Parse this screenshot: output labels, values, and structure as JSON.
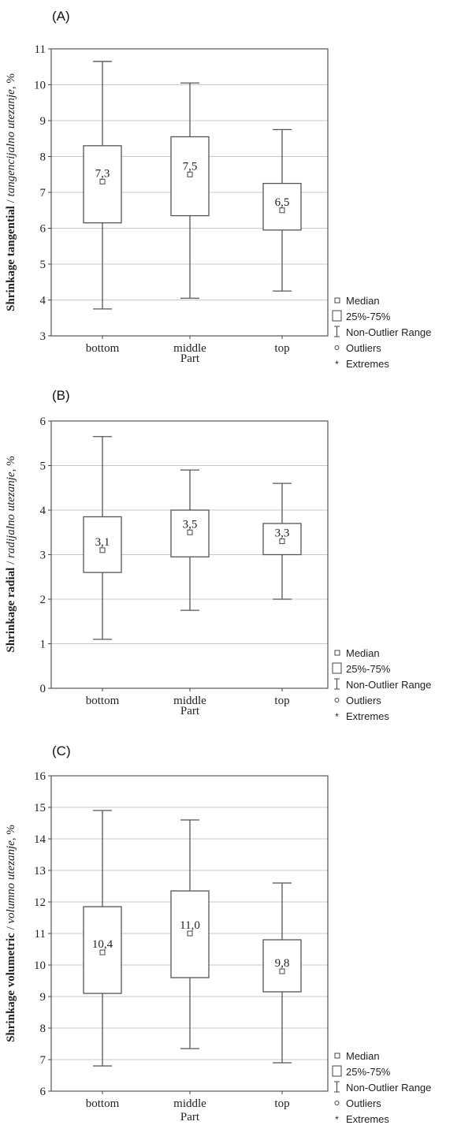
{
  "legend": {
    "median": "Median",
    "box": "25%-75%",
    "range": "Non-Outlier Range",
    "outliers": "Outliers",
    "extremes": "Extremes"
  },
  "chart_data": [
    {
      "type": "box",
      "panel_label": "(A)",
      "ylabel_bold": "Shrinkage tangential",
      "ylabel_sep": " / ",
      "ylabel_italic": "tangencijalno utezanje",
      "ylabel_unit": ", %",
      "xlabel": "Part",
      "ylim": [
        3,
        11
      ],
      "yticks": [
        "3",
        "4",
        "5",
        "6",
        "7",
        "8",
        "9",
        "10",
        "11"
      ],
      "grid": true,
      "categories": [
        "bottom",
        "middle",
        "top"
      ],
      "boxes": [
        {
          "min": 3.75,
          "q1": 6.15,
          "median": 7.3,
          "q3": 8.3,
          "max": 10.65,
          "label": "7,3"
        },
        {
          "min": 4.05,
          "q1": 6.35,
          "median": 7.5,
          "q3": 8.55,
          "max": 10.05,
          "label": "7,5"
        },
        {
          "min": 4.25,
          "q1": 5.95,
          "median": 6.5,
          "q3": 7.25,
          "max": 8.75,
          "label": "6,5"
        }
      ]
    },
    {
      "type": "box",
      "panel_label": "(B)",
      "ylabel_bold": "Shrinkage radial",
      "ylabel_sep": " / ",
      "ylabel_italic": "radijalno utezanje",
      "ylabel_unit": ", %",
      "xlabel": "Part",
      "ylim": [
        0,
        6
      ],
      "yticks": [
        "0",
        "1",
        "2",
        "3",
        "4",
        "5",
        "6"
      ],
      "grid": true,
      "categories": [
        "bottom",
        "middle",
        "top"
      ],
      "boxes": [
        {
          "min": 1.1,
          "q1": 2.6,
          "median": 3.1,
          "q3": 3.85,
          "max": 5.65,
          "label": "3,1"
        },
        {
          "min": 1.75,
          "q1": 2.95,
          "median": 3.5,
          "q3": 4.0,
          "max": 4.9,
          "label": "3,5"
        },
        {
          "min": 2.0,
          "q1": 3.0,
          "median": 3.3,
          "q3": 3.7,
          "max": 4.6,
          "label": "3,3"
        }
      ]
    },
    {
      "type": "box",
      "panel_label": "(C)",
      "ylabel_bold": "Shrinkage volumetric",
      "ylabel_sep": " / ",
      "ylabel_italic": "volumno utezanje",
      "ylabel_unit": ", %",
      "xlabel": "Part",
      "ylim": [
        6,
        16
      ],
      "yticks": [
        "6",
        "7",
        "8",
        "9",
        "10",
        "11",
        "12",
        "13",
        "14",
        "15",
        "16"
      ],
      "grid": true,
      "categories": [
        "bottom",
        "middle",
        "top"
      ],
      "boxes": [
        {
          "min": 6.8,
          "q1": 9.1,
          "median": 10.4,
          "q3": 11.85,
          "max": 14.9,
          "label": "10,4"
        },
        {
          "min": 7.35,
          "q1": 9.6,
          "median": 11.0,
          "q3": 12.35,
          "max": 14.6,
          "label": "11,0"
        },
        {
          "min": 6.9,
          "q1": 9.15,
          "median": 9.8,
          "q3": 10.8,
          "max": 12.6,
          "label": "9,8"
        }
      ]
    }
  ]
}
